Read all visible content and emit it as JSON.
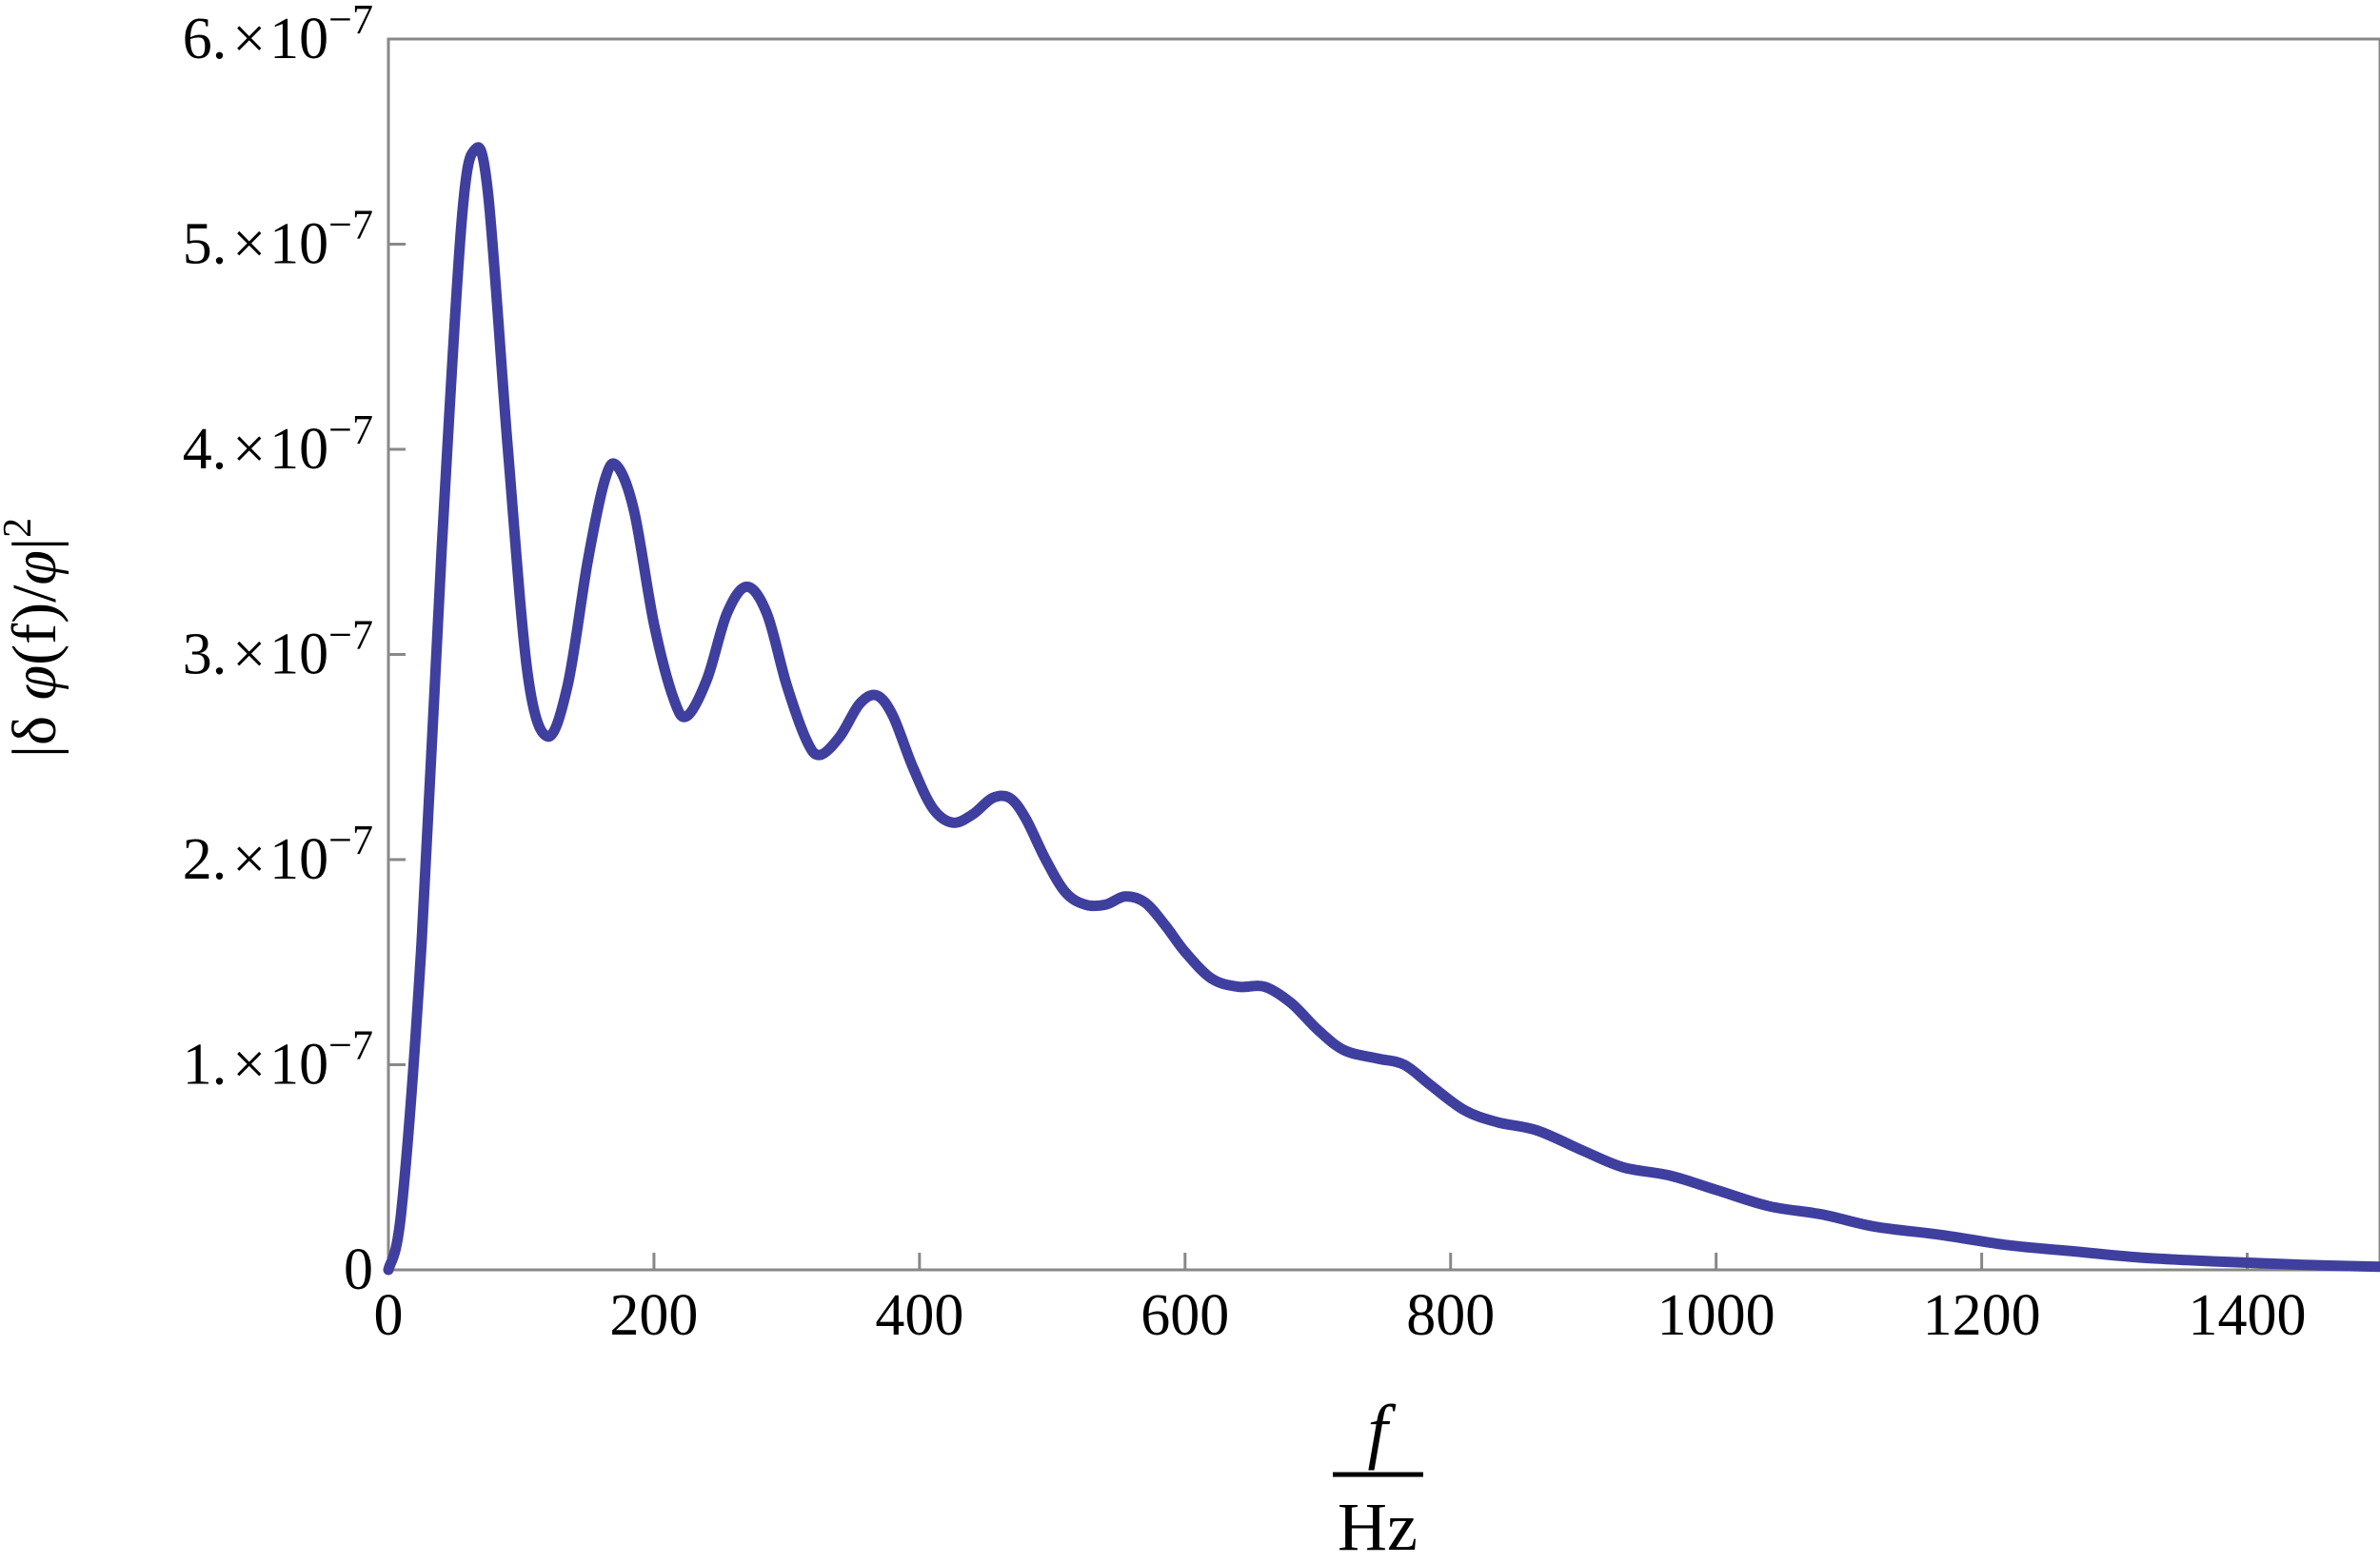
{
  "chart_data": {
    "type": "line",
    "xlabel": {
      "numerator": "f",
      "denominator": "Hz"
    },
    "ylabel": {
      "prefix": "|δ ",
      "phi1": "φ",
      "mid": "(f)/",
      "phi2": "φ",
      "suffix": "|",
      "exponent": "2"
    },
    "xlim": [
      0,
      1500
    ],
    "ylim": [
      0,
      6e-07
    ],
    "x_ticks": [
      {
        "value": 0,
        "label": "0"
      },
      {
        "value": 200,
        "label": "200"
      },
      {
        "value": 400,
        "label": "400"
      },
      {
        "value": 600,
        "label": "600"
      },
      {
        "value": 800,
        "label": "800"
      },
      {
        "value": 1000,
        "label": "1000"
      },
      {
        "value": 1200,
        "label": "1200"
      },
      {
        "value": 1400,
        "label": "1400"
      }
    ],
    "y_ticks": [
      {
        "value": 0,
        "mantissa": "0",
        "times": "",
        "base": "",
        "exponent": ""
      },
      {
        "value": 1e-07,
        "mantissa": "1.",
        "times": "×",
        "base": "10",
        "exponent": "−7"
      },
      {
        "value": 2e-07,
        "mantissa": "2.",
        "times": "×",
        "base": "10",
        "exponent": "−7"
      },
      {
        "value": 3e-07,
        "mantissa": "3.",
        "times": "×",
        "base": "10",
        "exponent": "−7"
      },
      {
        "value": 4e-07,
        "mantissa": "4.",
        "times": "×",
        "base": "10",
        "exponent": "−7"
      },
      {
        "value": 5e-07,
        "mantissa": "5.",
        "times": "×",
        "base": "10",
        "exponent": "−7"
      },
      {
        "value": 6e-07,
        "mantissa": "6.",
        "times": "×",
        "base": "10",
        "exponent": "−7"
      }
    ],
    "grid": false,
    "series": [
      {
        "color": "#3f3f9f",
        "points": [
          [
            0,
            0
          ],
          [
            10,
            3e-08
          ],
          [
            25,
            1.6e-07
          ],
          [
            40,
            3.5e-07
          ],
          [
            55,
            5.1e-07
          ],
          [
            65,
            5.46e-07
          ],
          [
            75,
            5.25e-07
          ],
          [
            90,
            4e-07
          ],
          [
            105,
            2.9e-07
          ],
          [
            120,
            2.6e-07
          ],
          [
            135,
            2.85e-07
          ],
          [
            150,
            3.45e-07
          ],
          [
            163,
            3.85e-07
          ],
          [
            172,
            3.92e-07
          ],
          [
            185,
            3.7e-07
          ],
          [
            200,
            3.15e-07
          ],
          [
            215,
            2.78e-07
          ],
          [
            225,
            2.7e-07
          ],
          [
            240,
            2.88e-07
          ],
          [
            255,
            3.2e-07
          ],
          [
            270,
            3.33e-07
          ],
          [
            285,
            3.2e-07
          ],
          [
            300,
            2.85e-07
          ],
          [
            315,
            2.58e-07
          ],
          [
            325,
            2.51e-07
          ],
          [
            340,
            2.6e-07
          ],
          [
            355,
            2.76e-07
          ],
          [
            368,
            2.8e-07
          ],
          [
            380,
            2.7e-07
          ],
          [
            395,
            2.45e-07
          ],
          [
            410,
            2.25e-07
          ],
          [
            425,
            2.18e-07
          ],
          [
            440,
            2.22e-07
          ],
          [
            455,
            2.3e-07
          ],
          [
            468,
            2.3e-07
          ],
          [
            480,
            2.2e-07
          ],
          [
            495,
            2e-07
          ],
          [
            510,
            1.84e-07
          ],
          [
            525,
            1.78e-07
          ],
          [
            540,
            1.78e-07
          ],
          [
            555,
            1.82e-07
          ],
          [
            570,
            1.79e-07
          ],
          [
            585,
            1.68e-07
          ],
          [
            600,
            1.55e-07
          ],
          [
            620,
            1.42e-07
          ],
          [
            640,
            1.38e-07
          ],
          [
            660,
            1.38e-07
          ],
          [
            680,
            1.3e-07
          ],
          [
            700,
            1.17e-07
          ],
          [
            720,
            1.07e-07
          ],
          [
            745,
            1.03e-07
          ],
          [
            765,
            1e-07
          ],
          [
            785,
            9e-08
          ],
          [
            810,
            7.8e-08
          ],
          [
            835,
            7.2e-08
          ],
          [
            865,
            6.8e-08
          ],
          [
            900,
            5.8e-08
          ],
          [
            930,
            5e-08
          ],
          [
            965,
            4.6e-08
          ],
          [
            1000,
            3.9e-08
          ],
          [
            1040,
            3.1e-08
          ],
          [
            1080,
            2.7e-08
          ],
          [
            1120,
            2.1e-08
          ],
          [
            1170,
            1.7e-08
          ],
          [
            1220,
            1.2e-08
          ],
          [
            1270,
            9e-09
          ],
          [
            1320,
            6e-09
          ],
          [
            1380,
            4e-09
          ],
          [
            1440,
            2.5e-09
          ],
          [
            1500,
            1.5e-09
          ]
        ]
      }
    ]
  }
}
